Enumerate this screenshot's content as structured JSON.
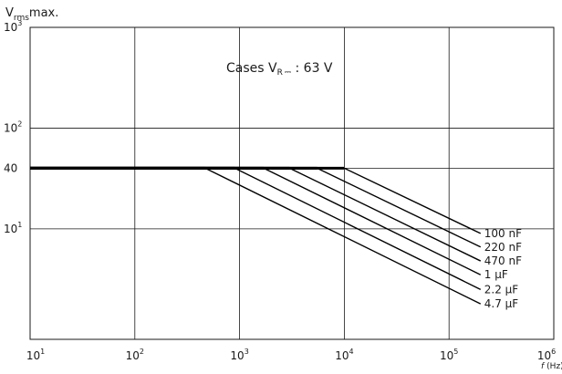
{
  "chart_data": {
    "type": "line",
    "ylabel": {
      "base": "V",
      "sub": "rms",
      "rest": "max."
    },
    "xlabel": {
      "f": "f",
      "unit": "(Hz)"
    },
    "annotation": {
      "prefix": "Cases V",
      "sub": "R",
      "suffix": " : 63 V"
    },
    "x_scale": "log",
    "y_scale": "log",
    "xlim": [
      10,
      1000000
    ],
    "ylim": [
      0.8,
      1000
    ],
    "grid": true,
    "x_ticks": [
      {
        "value": 10,
        "base": "10",
        "exp": "1"
      },
      {
        "value": 100,
        "base": "10",
        "exp": "2"
      },
      {
        "value": 1000,
        "base": "10",
        "exp": "3"
      },
      {
        "value": 10000,
        "base": "10",
        "exp": "4"
      },
      {
        "value": 100000,
        "base": "10",
        "exp": "5"
      },
      {
        "value": 1000000,
        "base": "10",
        "exp": "6"
      }
    ],
    "y_ticks": [
      {
        "value": 1000,
        "base": "10",
        "exp": "3"
      },
      {
        "value": 100,
        "base": "10",
        "exp": "2"
      },
      {
        "value": 40,
        "base": "40",
        "exp": ""
      },
      {
        "value": 10,
        "base": "10",
        "exp": "1"
      }
    ],
    "series": [
      {
        "name": "100 nF",
        "points": [
          [
            10,
            40
          ],
          [
            10000,
            40
          ],
          [
            200000,
            9
          ]
        ]
      },
      {
        "name": "220 nF",
        "points": [
          [
            10,
            40
          ],
          [
            5500,
            40
          ],
          [
            200000,
            6.6
          ]
        ]
      },
      {
        "name": "470 nF",
        "points": [
          [
            10,
            40
          ],
          [
            3000,
            40
          ],
          [
            200000,
            4.8
          ]
        ]
      },
      {
        "name": "1 µF",
        "points": [
          [
            10,
            40
          ],
          [
            1700,
            40
          ],
          [
            200000,
            3.5
          ]
        ]
      },
      {
        "name": "2.2 µF",
        "points": [
          [
            10,
            40
          ],
          [
            900,
            40
          ],
          [
            200000,
            2.5
          ]
        ]
      },
      {
        "name": "4.7 µF",
        "points": [
          [
            10,
            40
          ],
          [
            470,
            40
          ],
          [
            200000,
            1.8
          ]
        ]
      }
    ]
  }
}
